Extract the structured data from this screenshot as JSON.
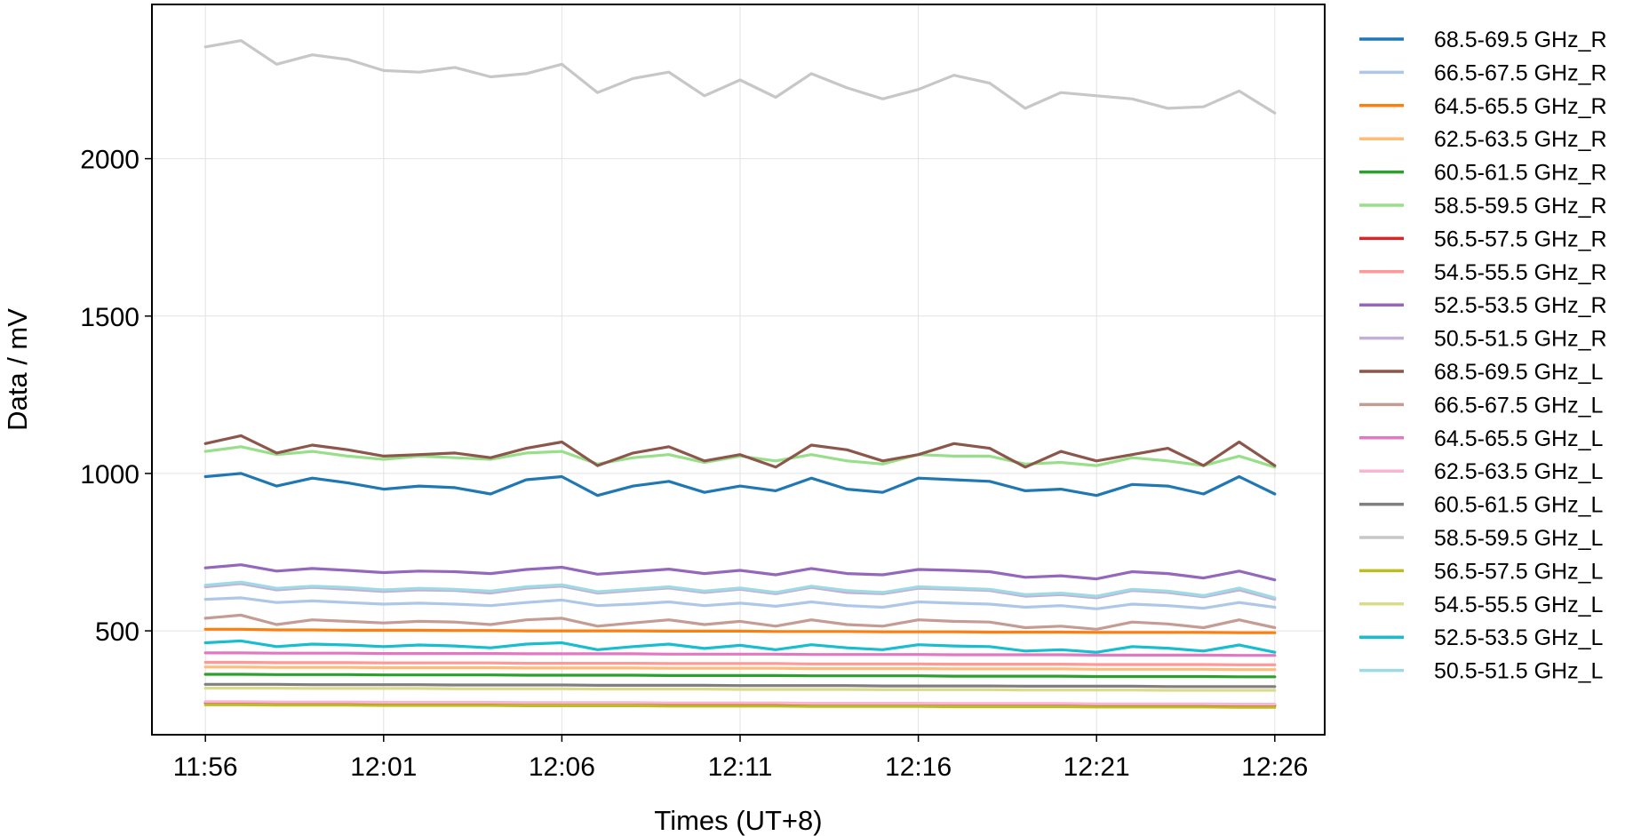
{
  "chart_data": {
    "type": "line",
    "title": "",
    "xlabel": "Times (UT+8)",
    "ylabel": "Data / mV",
    "x_ticks": [
      "11:56",
      "12:01",
      "12:06",
      "12:11",
      "12:16",
      "12:21",
      "12:26"
    ],
    "x_tick_minutes": [
      0,
      5,
      10,
      15,
      20,
      25,
      30
    ],
    "x_range_minutes": [
      -1.5,
      31.4
    ],
    "y_ticks": [
      500,
      1000,
      1500,
      2000
    ],
    "ylim": [
      170,
      2490
    ],
    "grid": true,
    "legend_position": "right-outside",
    "x": [
      0,
      1,
      2,
      3,
      4,
      5,
      6,
      7,
      8,
      9,
      10,
      11,
      12,
      13,
      14,
      15,
      16,
      17,
      18,
      19,
      20,
      21,
      22,
      23,
      24,
      25,
      26,
      27,
      28,
      29,
      30
    ],
    "series": [
      {
        "name": "68.5-69.5 GHz_R",
        "color": "#1f77b4",
        "values": [
          990,
          1000,
          960,
          985,
          970,
          950,
          960,
          955,
          935,
          980,
          990,
          930,
          960,
          975,
          940,
          960,
          945,
          985,
          950,
          940,
          985,
          980,
          975,
          945,
          950,
          930,
          965,
          960,
          935,
          990,
          935
        ]
      },
      {
        "name": "66.5-67.5 GHz_R",
        "color": "#aec7e8",
        "values": [
          600,
          605,
          590,
          595,
          590,
          585,
          588,
          585,
          580,
          590,
          598,
          580,
          585,
          592,
          580,
          588,
          578,
          592,
          580,
          575,
          592,
          588,
          585,
          575,
          580,
          570,
          585,
          580,
          572,
          590,
          575
        ]
      },
      {
        "name": "64.5-65.5 GHz_R",
        "color": "#ff7f0e",
        "values": [
          505,
          505,
          503,
          503,
          502,
          502,
          502,
          501,
          501,
          500,
          500,
          500,
          500,
          499,
          499,
          499,
          498,
          498,
          498,
          497,
          497,
          497,
          496,
          496,
          496,
          495,
          495,
          495,
          495,
          494,
          494
        ]
      },
      {
        "name": "62.5-63.5 GHz_R",
        "color": "#ffbb78",
        "values": [
          385,
          385,
          384,
          384,
          384,
          383,
          383,
          383,
          383,
          382,
          382,
          382,
          382,
          381,
          381,
          381,
          381,
          380,
          380,
          380,
          380,
          379,
          379,
          379,
          379,
          378,
          378,
          378,
          378,
          377,
          377
        ]
      },
      {
        "name": "60.5-61.5 GHz_R",
        "color": "#2ca02c",
        "values": [
          362,
          362,
          361,
          361,
          361,
          360,
          360,
          360,
          360,
          359,
          359,
          359,
          359,
          358,
          358,
          358,
          358,
          357,
          357,
          357,
          357,
          356,
          356,
          356,
          356,
          355,
          355,
          355,
          355,
          354,
          354
        ]
      },
      {
        "name": "58.5-59.5 GHz_R",
        "color": "#98df8a",
        "values": [
          1070,
          1085,
          1060,
          1070,
          1055,
          1045,
          1055,
          1050,
          1045,
          1065,
          1070,
          1030,
          1050,
          1060,
          1035,
          1055,
          1040,
          1060,
          1040,
          1030,
          1060,
          1055,
          1055,
          1030,
          1035,
          1025,
          1050,
          1040,
          1025,
          1055,
          1020
        ]
      },
      {
        "name": "56.5-57.5 GHz_R",
        "color": "#d62728",
        "values": [
          272,
          272,
          271,
          271,
          271,
          270,
          270,
          270,
          270,
          269,
          269,
          269,
          269,
          268,
          268,
          268,
          268,
          267,
          267,
          267,
          267,
          266,
          266,
          266,
          266,
          265,
          265,
          265,
          265,
          264,
          264
        ]
      },
      {
        "name": "54.5-55.5 GHz_R",
        "color": "#ff9896",
        "values": [
          400,
          400,
          399,
          399,
          399,
          398,
          398,
          398,
          398,
          397,
          397,
          397,
          397,
          396,
          396,
          396,
          396,
          395,
          395,
          395,
          395,
          394,
          394,
          394,
          394,
          393,
          393,
          393,
          393,
          392,
          392
        ]
      },
      {
        "name": "52.5-53.5 GHz_R",
        "color": "#9467bd",
        "values": [
          700,
          710,
          690,
          698,
          692,
          685,
          690,
          688,
          682,
          695,
          702,
          680,
          688,
          696,
          682,
          692,
          678,
          698,
          682,
          678,
          695,
          692,
          688,
          670,
          675,
          665,
          688,
          682,
          668,
          690,
          662
        ]
      },
      {
        "name": "50.5-51.5 GHz_R",
        "color": "#c5b0d5",
        "values": [
          640,
          650,
          630,
          638,
          632,
          625,
          630,
          628,
          620,
          635,
          642,
          620,
          628,
          636,
          622,
          632,
          618,
          638,
          622,
          618,
          635,
          632,
          628,
          610,
          615,
          605,
          628,
          622,
          608,
          630,
          600
        ]
      },
      {
        "name": "68.5-69.5 GHz_L",
        "color": "#8c564b",
        "values": [
          1095,
          1120,
          1065,
          1090,
          1075,
          1055,
          1060,
          1065,
          1050,
          1080,
          1100,
          1025,
          1065,
          1085,
          1040,
          1060,
          1020,
          1090,
          1075,
          1040,
          1060,
          1095,
          1080,
          1020,
          1070,
          1040,
          1060,
          1080,
          1025,
          1100,
          1025
        ]
      },
      {
        "name": "66.5-67.5 GHz_L",
        "color": "#c49c94",
        "values": [
          540,
          550,
          520,
          535,
          530,
          525,
          530,
          528,
          520,
          535,
          540,
          515,
          525,
          535,
          520,
          530,
          515,
          535,
          520,
          515,
          535,
          530,
          528,
          510,
          515,
          505,
          528,
          522,
          510,
          535,
          510
        ]
      },
      {
        "name": "64.5-65.5 GHz_L",
        "color": "#e377c2",
        "values": [
          430,
          430,
          429,
          429,
          429,
          428,
          428,
          428,
          428,
          427,
          427,
          427,
          427,
          426,
          426,
          426,
          426,
          425,
          425,
          425,
          425,
          424,
          424,
          424,
          424,
          423,
          423,
          423,
          423,
          422,
          422
        ]
      },
      {
        "name": "62.5-63.5 GHz_L",
        "color": "#f7b6d2",
        "values": [
          275,
          275,
          274,
          274,
          274,
          273,
          273,
          273,
          273,
          272,
          272,
          272,
          272,
          271,
          271,
          271,
          271,
          270,
          270,
          270,
          270,
          269,
          269,
          269,
          269,
          268,
          268,
          268,
          268,
          267,
          267
        ]
      },
      {
        "name": "60.5-61.5 GHz_L",
        "color": "#7f7f7f",
        "values": [
          330,
          330,
          330,
          329,
          329,
          329,
          329,
          328,
          328,
          328,
          328,
          327,
          327,
          327,
          327,
          326,
          326,
          326,
          326,
          325,
          325,
          325,
          325,
          324,
          324,
          324,
          324,
          323,
          323,
          323,
          323
        ]
      },
      {
        "name": "58.5-59.5 GHz_L",
        "color": "#c7c7c7",
        "values": [
          2355,
          2375,
          2300,
          2330,
          2315,
          2280,
          2275,
          2290,
          2260,
          2270,
          2300,
          2210,
          2255,
          2275,
          2200,
          2250,
          2195,
          2270,
          2225,
          2190,
          2220,
          2265,
          2240,
          2160,
          2210,
          2200,
          2190,
          2160,
          2165,
          2215,
          2145
        ]
      },
      {
        "name": "56.5-57.5 GHz_L",
        "color": "#bcbd22",
        "values": [
          265,
          265,
          264,
          264,
          264,
          263,
          263,
          263,
          263,
          262,
          262,
          262,
          262,
          261,
          261,
          261,
          261,
          260,
          260,
          260,
          260,
          259,
          259,
          259,
          259,
          258,
          258,
          258,
          258,
          257,
          257
        ]
      },
      {
        "name": "54.5-55.5 GHz_L",
        "color": "#dbdb8d",
        "values": [
          318,
          318,
          318,
          317,
          317,
          317,
          317,
          316,
          316,
          316,
          316,
          315,
          315,
          315,
          315,
          314,
          314,
          314,
          314,
          313,
          313,
          313,
          313,
          312,
          312,
          312,
          312,
          311,
          311,
          311,
          311
        ]
      },
      {
        "name": "52.5-53.5 GHz_L",
        "color": "#17becf",
        "values": [
          462,
          468,
          450,
          458,
          455,
          450,
          455,
          452,
          446,
          458,
          462,
          440,
          450,
          458,
          444,
          454,
          440,
          456,
          446,
          440,
          456,
          452,
          450,
          436,
          440,
          432,
          450,
          445,
          436,
          455,
          432
        ]
      },
      {
        "name": "50.5-51.5 GHz_L",
        "color": "#9edae5",
        "values": [
          645,
          655,
          635,
          642,
          638,
          630,
          635,
          632,
          626,
          640,
          646,
          624,
          632,
          640,
          626,
          636,
          622,
          642,
          628,
          622,
          640,
          636,
          632,
          615,
          620,
          610,
          632,
          626,
          612,
          636,
          605
        ]
      }
    ]
  }
}
